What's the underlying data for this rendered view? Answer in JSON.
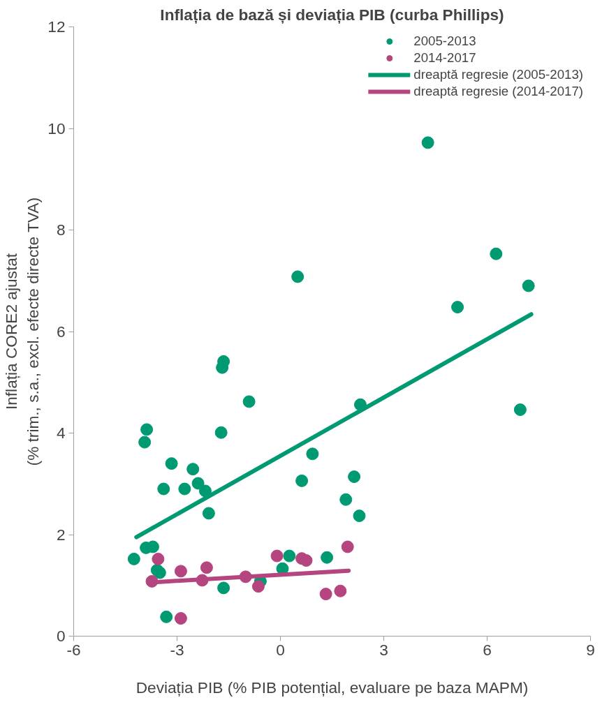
{
  "chart_data": {
    "type": "scatter",
    "title": "Inflația de bază și deviația PIB (curba Phillips)",
    "xlabel": "Deviația PIB (% PIB potențial, evaluare pe baza MAPM)",
    "ylabel": "Inflația CORE2 ajustat\n(% trim., s.a., excl. efecte directe TVA)",
    "xlim": [
      -6,
      9
    ],
    "xticks": [
      -6,
      -3,
      0,
      3,
      6,
      9
    ],
    "ylim": [
      0,
      12
    ],
    "yticks": [
      0,
      2,
      4,
      6,
      8,
      10,
      12
    ],
    "grid": false,
    "legend": "top right",
    "series": [
      {
        "name": "2005-2013",
        "marker": "circle",
        "color": "#009a72",
        "x": [
          -4.25,
          -3.9,
          -3.7,
          -3.88,
          -3.94,
          -3.16,
          -3.39,
          -2.78,
          -2.54,
          -2.39,
          -2.18,
          -2.08,
          -1.72,
          -0.91,
          -3.58,
          -3.5,
          -1.65,
          -0.58,
          -3.31,
          0.26,
          0.06,
          0.62,
          0.93,
          -1.65,
          -1.69,
          0.5,
          2.32,
          2.14,
          1.9,
          2.29,
          1.35,
          4.28,
          6.26,
          7.2,
          5.14,
          6.96
        ],
        "values": [
          1.52,
          1.74,
          1.76,
          4.07,
          3.82,
          3.4,
          2.9,
          2.9,
          3.29,
          3.01,
          2.86,
          2.42,
          4.01,
          4.62,
          1.3,
          1.25,
          0.95,
          1.08,
          0.38,
          1.58,
          1.33,
          3.06,
          3.59,
          5.41,
          5.29,
          7.08,
          4.56,
          3.14,
          2.69,
          2.37,
          1.55,
          9.72,
          7.53,
          6.9,
          6.48,
          4.46
        ]
      },
      {
        "name": "2014-2017",
        "marker": "circle",
        "color": "#b5457e",
        "x": [
          -3.55,
          -3.73,
          -2.89,
          -2.14,
          -2.27,
          -1.01,
          -0.64,
          -2.89,
          -0.1,
          0.62,
          0.75,
          1.95,
          1.32,
          1.74
        ],
        "values": [
          1.52,
          1.08,
          1.28,
          1.35,
          1.1,
          1.17,
          0.98,
          0.35,
          1.58,
          1.53,
          1.49,
          1.76,
          0.83,
          0.89
        ]
      },
      {
        "name": "dreaptă regresie (2005-2013)",
        "type": "line",
        "color": "#009a72",
        "x": [
          -4.18,
          7.28
        ],
        "values": [
          1.95,
          6.34
        ]
      },
      {
        "name": "dreaptă regresie (2014-2017)",
        "type": "line",
        "color": "#b5457e",
        "x": [
          -3.73,
          1.98
        ],
        "values": [
          1.06,
          1.29
        ]
      }
    ]
  }
}
